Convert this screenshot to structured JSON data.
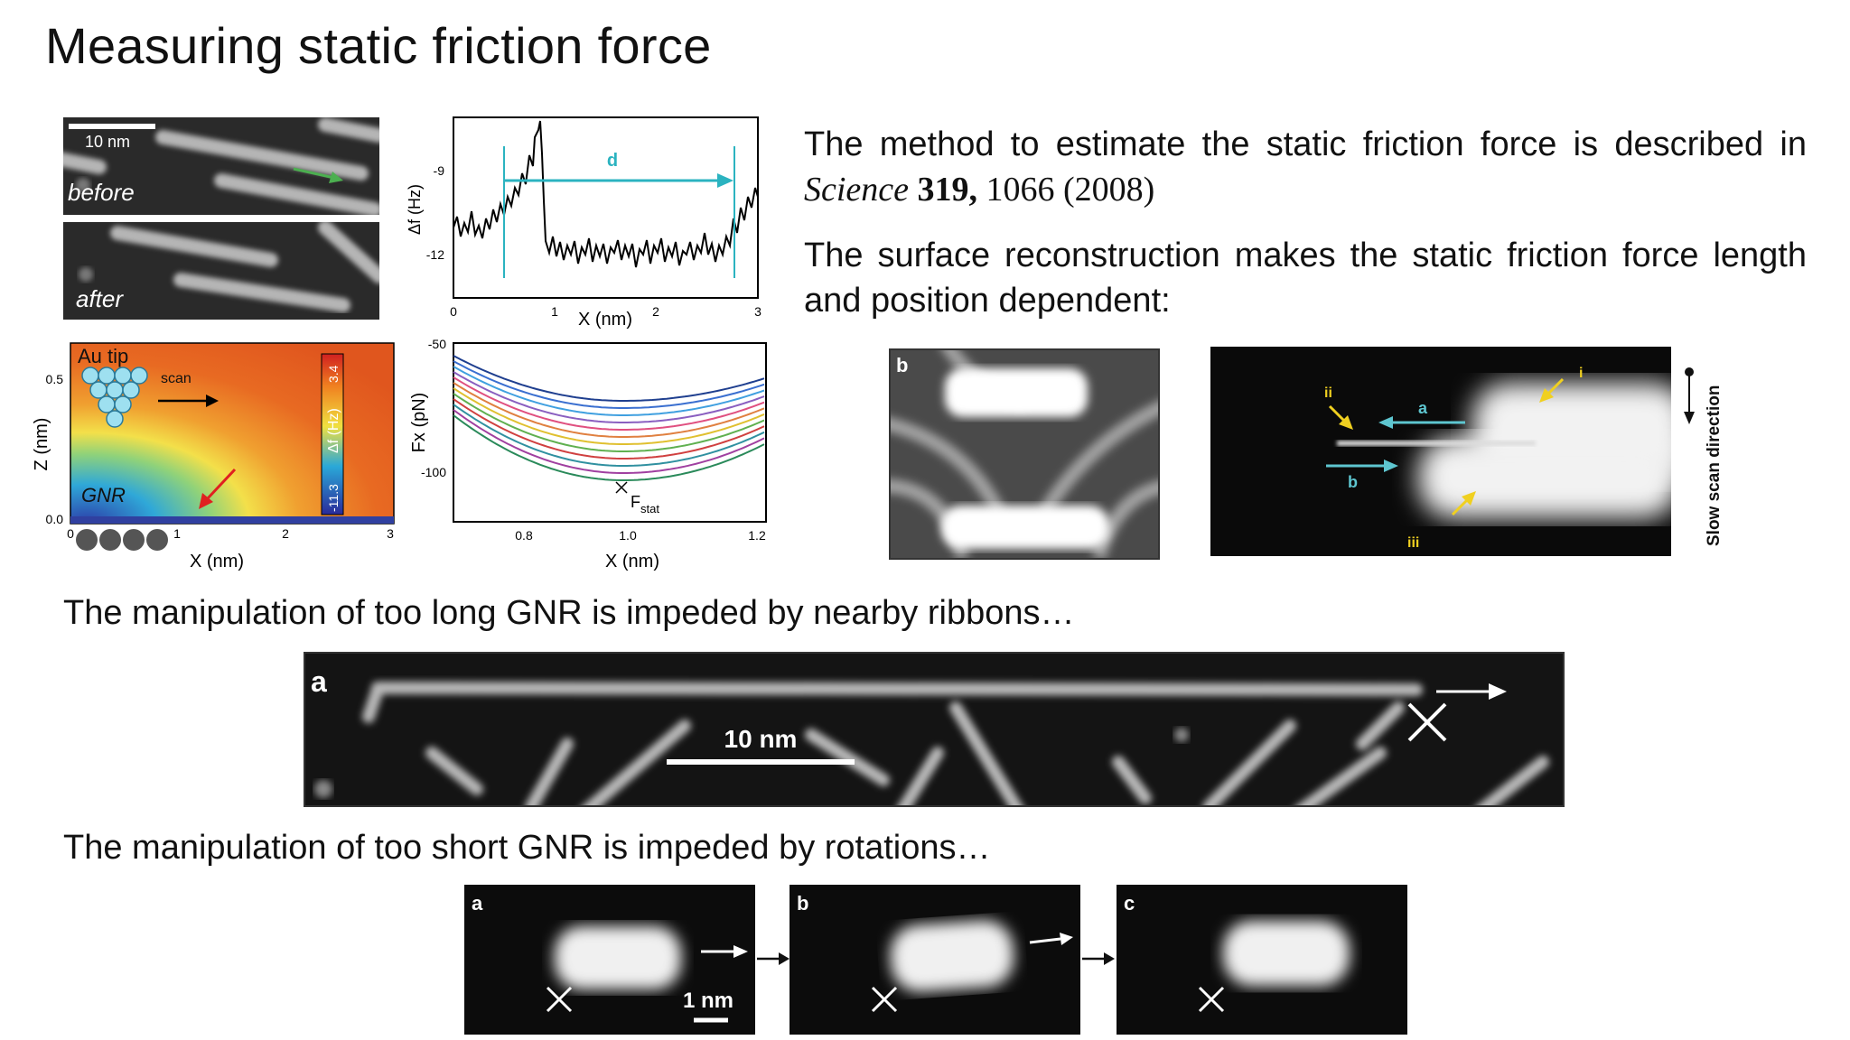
{
  "title": "Measuring static friction force",
  "method_text": {
    "prefix": "The method to estimate the static friction force is described in ",
    "journal": "Science",
    "volume": "319,",
    "rest": " 1066 (2008)"
  },
  "surface_text": "The surface reconstruction makes the static friction force length and position dependent:",
  "caption_long": "The manipulation of too long GNR is impeded by nearby ribbons…",
  "caption_short": "The manipulation of too short GNR is impeded by rotations…",
  "stm_before_after": {
    "scale_label": "10 nm",
    "before_label": "before",
    "after_label": "after"
  },
  "df_plot": {
    "ylabel": "Δf (Hz)",
    "xlabel": "X (nm)",
    "yticks": [
      "-9",
      "-12"
    ],
    "xticks": [
      "0",
      "1",
      "2",
      "3"
    ],
    "distance_label": "d"
  },
  "z_map": {
    "tip_label": "Au tip",
    "scan_label": "scan",
    "gnr_label": "GNR",
    "ylabel": "Z (nm)",
    "xlabel": "X (nm)",
    "yticks": [
      "0.5",
      "0.0"
    ],
    "xticks": [
      "0",
      "1",
      "2",
      "3"
    ],
    "colorbar_label": "Δf (Hz)",
    "colorbar_min": "-11.3",
    "colorbar_max": "3.4"
  },
  "fx_plot": {
    "ylabel": "Fx (pN)",
    "xlabel": "X (nm)",
    "yticks": [
      "-50",
      "-100"
    ],
    "xticks": [
      "0.8",
      "1.0",
      "1.2"
    ],
    "fstat_label": "F",
    "fstat_sub": "stat"
  },
  "recon_panel": {
    "label": "b"
  },
  "slow_scan": {
    "labels": [
      "i",
      "ii",
      "iii"
    ],
    "arrow_a": "a",
    "arrow_b": "b",
    "direction_label": "Slow scan direction"
  },
  "long_gnr": {
    "label": "a",
    "scale_label": "10 nm"
  },
  "short_gnr": {
    "labels": [
      "a",
      "b",
      "c"
    ],
    "scale_label": "1 nm"
  }
}
